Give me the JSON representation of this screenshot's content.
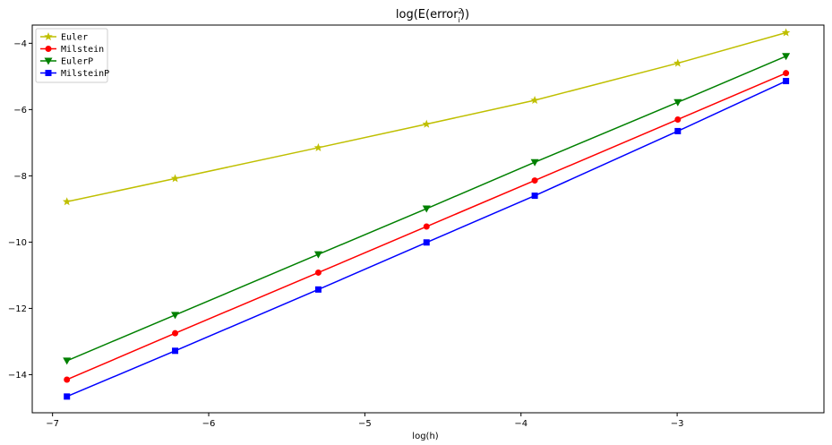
{
  "chart_data": {
    "type": "line",
    "title": {
      "main": "log(E(error",
      "sup": "2",
      "sub": "i",
      "close": "))"
    },
    "xlabel": "log(h)",
    "ylabel": "",
    "xlim": [
      -7.13,
      -2.06
    ],
    "ylim": [
      -15.15,
      -3.45
    ],
    "xticks": [
      -7,
      -6,
      -5,
      -4,
      -3
    ],
    "yticks": [
      -14,
      -12,
      -10,
      -8,
      -6,
      -4
    ],
    "x": [
      -6.908,
      -6.215,
      -5.298,
      -4.605,
      -3.912,
      -2.996,
      -2.303
    ],
    "grid": false,
    "legend_position": "top-left",
    "series": [
      {
        "name": "Euler",
        "color": "#bfbf00",
        "marker": "star",
        "values": [
          -8.78,
          -8.08,
          -7.15,
          -6.44,
          -5.72,
          -4.6,
          -3.68
        ]
      },
      {
        "name": "Milstein",
        "color": "#ff0000",
        "marker": "circle",
        "values": [
          -14.15,
          -12.75,
          -10.92,
          -9.53,
          -8.14,
          -6.3,
          -4.9
        ]
      },
      {
        "name": "EulerP",
        "color": "#008000",
        "marker": "triangle-down",
        "values": [
          -13.58,
          -12.2,
          -10.37,
          -8.99,
          -7.59,
          -5.78,
          -4.39
        ]
      },
      {
        "name": "MilsteinP",
        "color": "#0000ff",
        "marker": "square",
        "values": [
          -14.66,
          -13.28,
          -11.43,
          -10.01,
          -8.6,
          -6.65,
          -5.14
        ]
      }
    ]
  }
}
